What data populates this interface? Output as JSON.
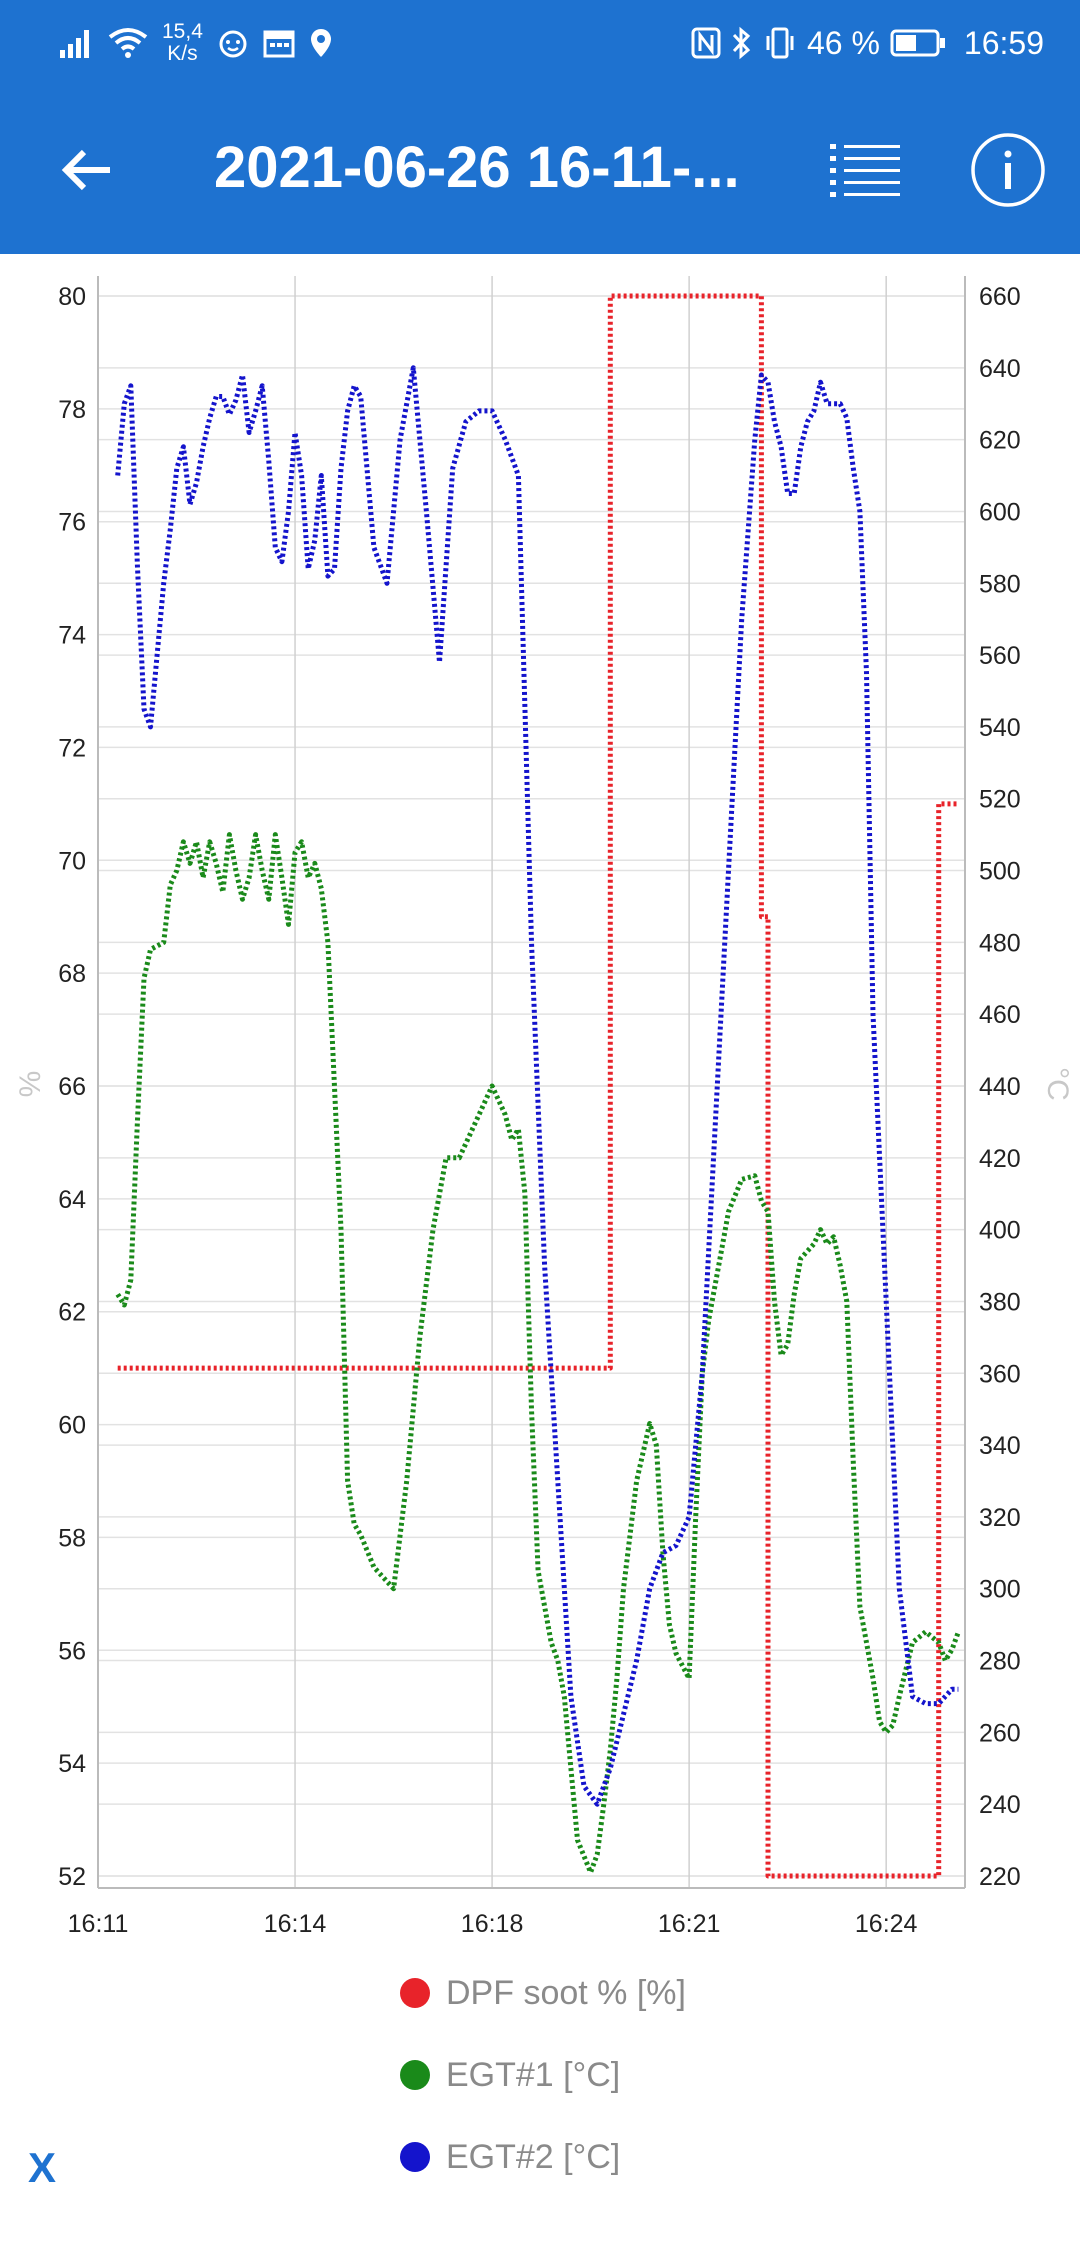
{
  "status_bar": {
    "speed_value": "15,4",
    "speed_unit": "K/s",
    "battery": "46 %",
    "time": "16:59",
    "left_icons": [
      "signal-icon",
      "wifi-icon",
      "cat-face-icon",
      "calendar-icon",
      "location-pin-icon"
    ],
    "right_icons": [
      "nfc-icon",
      "bluetooth-icon",
      "vibrate-icon",
      "battery-icon"
    ]
  },
  "app_bar": {
    "title": "2021-06-26 16-11-...",
    "back_icon": "arrow-left-icon",
    "list_icon": "list-icon",
    "info_icon": "info-icon"
  },
  "chart_data": {
    "type": "line",
    "title": "",
    "x_ticks": [
      "16:11",
      "16:14",
      "16:18",
      "16:21",
      "16:24"
    ],
    "x_unit": "minutes after 16:11",
    "xlim": [
      0,
      13.2
    ],
    "x_tick_values": [
      0,
      3,
      6,
      9,
      12
    ],
    "left_axis": {
      "label": "%",
      "ylim": [
        52,
        80
      ],
      "ticks": [
        52,
        54,
        56,
        58,
        60,
        62,
        64,
        66,
        68,
        70,
        72,
        74,
        76,
        78,
        80
      ]
    },
    "right_axis": {
      "label": "°C",
      "ylim": [
        220,
        660
      ],
      "ticks": [
        220,
        240,
        260,
        280,
        300,
        320,
        340,
        360,
        380,
        400,
        420,
        440,
        460,
        480,
        500,
        520,
        540,
        560,
        580,
        600,
        620,
        640,
        660
      ]
    },
    "grid": true,
    "series": [
      {
        "name": "DPF soot % [%]",
        "axis": "left",
        "color": "#e8232a",
        "step": true,
        "x": [
          0.3,
          7.8,
          7.8,
          10.1,
          10.1,
          10.2,
          10.2,
          12.8,
          12.8,
          13.1
        ],
        "y": [
          61,
          61,
          80,
          80,
          69,
          69,
          52,
          52,
          71,
          71
        ]
      },
      {
        "name": "EGT#1 [°C]",
        "axis": "right",
        "color": "#1a8a1a",
        "x": [
          0.3,
          0.4,
          0.5,
          0.6,
          0.7,
          0.8,
          1.0,
          1.1,
          1.2,
          1.3,
          1.4,
          1.5,
          1.6,
          1.7,
          1.8,
          1.9,
          2.0,
          2.1,
          2.2,
          2.3,
          2.4,
          2.5,
          2.6,
          2.7,
          2.8,
          2.9,
          3.0,
          3.1,
          3.2,
          3.3,
          3.4,
          3.5,
          3.7,
          3.8,
          3.9,
          4.0,
          4.2,
          4.5,
          4.7,
          4.9,
          5.1,
          5.3,
          5.5,
          5.8,
          6.0,
          6.2,
          6.3,
          6.4,
          6.5,
          6.6,
          6.7,
          6.9,
          7.0,
          7.1,
          7.2,
          7.3,
          7.5,
          7.6,
          7.7,
          7.8,
          7.9,
          8.0,
          8.2,
          8.4,
          8.5,
          8.6,
          8.7,
          8.8,
          9.0,
          9.1,
          9.2,
          9.3,
          9.4,
          9.5,
          9.6,
          9.8,
          10.0,
          10.1,
          10.2,
          10.3,
          10.4,
          10.5,
          10.6,
          10.7,
          10.9,
          11.0,
          11.1,
          11.2,
          11.3,
          11.4,
          11.5,
          11.6,
          11.7,
          11.8,
          11.9,
          12.0,
          12.1,
          12.2,
          12.4,
          12.6,
          12.8,
          12.9,
          13.0,
          13.1
        ],
        "y": [
          382,
          379,
          386,
          430,
          470,
          478,
          480,
          496,
          500,
          508,
          502,
          508,
          498,
          508,
          502,
          494,
          510,
          500,
          492,
          498,
          510,
          500,
          492,
          510,
          498,
          485,
          505,
          508,
          498,
          502,
          495,
          480,
          400,
          330,
          318,
          315,
          306,
          300,
          330,
          370,
          400,
          420,
          420,
          432,
          440,
          432,
          425,
          428,
          410,
          350,
          305,
          285,
          280,
          270,
          250,
          230,
          221,
          226,
          240,
          255,
          275,
          300,
          330,
          346,
          340,
          310,
          290,
          282,
          275,
          320,
          360,
          375,
          385,
          395,
          405,
          414,
          415,
          408,
          405,
          380,
          365,
          368,
          382,
          392,
          396,
          400,
          396,
          398,
          390,
          380,
          335,
          295,
          285,
          275,
          263,
          260,
          262,
          270,
          285,
          288,
          285,
          280,
          283,
          288
        ]
      },
      {
        "name": "EGT#2 [°C]",
        "axis": "right",
        "color": "#1414cc",
        "x": [
          0.3,
          0.4,
          0.5,
          0.6,
          0.7,
          0.8,
          0.9,
          1.0,
          1.1,
          1.2,
          1.3,
          1.4,
          1.5,
          1.6,
          1.7,
          1.8,
          1.9,
          2.0,
          2.1,
          2.2,
          2.3,
          2.4,
          2.5,
          2.6,
          2.7,
          2.8,
          2.9,
          3.0,
          3.1,
          3.2,
          3.3,
          3.4,
          3.5,
          3.6,
          3.7,
          3.8,
          3.9,
          4.0,
          4.2,
          4.4,
          4.6,
          4.8,
          5.0,
          5.2,
          5.4,
          5.6,
          5.8,
          6.0,
          6.2,
          6.4,
          6.6,
          6.8,
          7.0,
          7.2,
          7.4,
          7.6,
          7.8,
          8.0,
          8.2,
          8.4,
          8.6,
          8.8,
          9.0,
          9.2,
          9.4,
          9.6,
          9.8,
          10.0,
          10.1,
          10.2,
          10.3,
          10.4,
          10.5,
          10.6,
          10.7,
          10.8,
          10.9,
          11.0,
          11.1,
          11.2,
          11.3,
          11.4,
          11.5,
          11.6,
          11.7,
          11.8,
          11.9,
          12.0,
          12.2,
          12.4,
          12.6,
          12.8,
          13.0,
          13.1
        ],
        "y": [
          610,
          630,
          635,
          585,
          545,
          540,
          560,
          580,
          595,
          612,
          618,
          602,
          608,
          618,
          626,
          632,
          632,
          627,
          631,
          638,
          622,
          628,
          635,
          614,
          590,
          586,
          600,
          622,
          610,
          584,
          592,
          610,
          582,
          584,
          612,
          628,
          635,
          632,
          590,
          580,
          620,
          640,
          600,
          558,
          612,
          625,
          628,
          628,
          620,
          610,
          480,
          390,
          330,
          270,
          245,
          240,
          250,
          265,
          280,
          300,
          310,
          312,
          320,
          360,
          430,
          500,
          570,
          620,
          638,
          636,
          625,
          618,
          605,
          605,
          618,
          625,
          628,
          636,
          630,
          630,
          630,
          626,
          612,
          600,
          555,
          460,
          420,
          380,
          300,
          270,
          268,
          268,
          272,
          272
        ]
      }
    ],
    "legend": "bottom",
    "legend_entries": [
      "DPF soot % [%]",
      "EGT#1 [°C]",
      "EGT#2 [°C]"
    ]
  },
  "footer": {
    "close_label": "X"
  }
}
